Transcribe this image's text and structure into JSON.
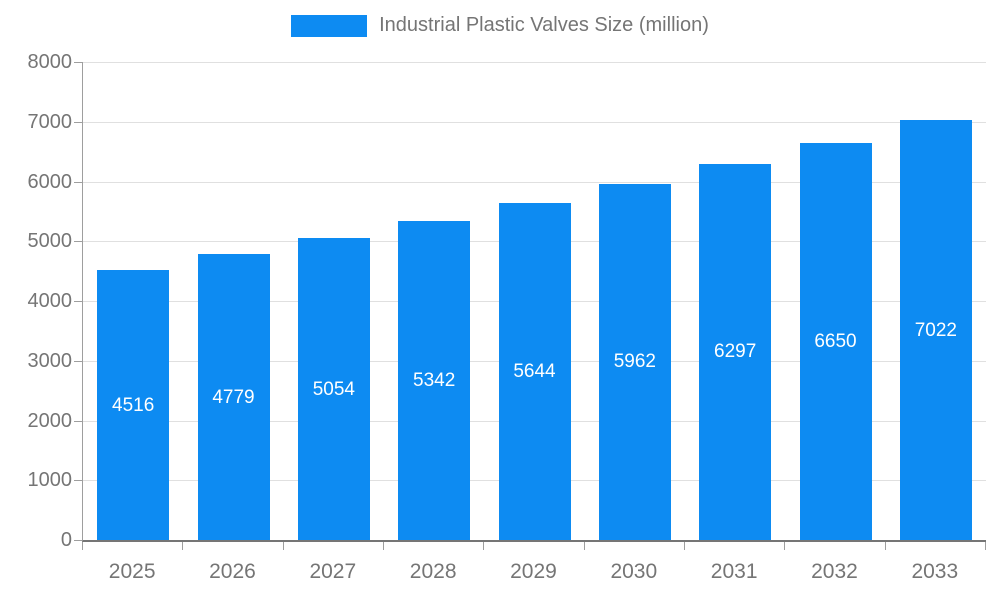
{
  "chart_data": {
    "type": "bar",
    "title": "Industrial Plastic Valves Size (million)",
    "categories": [
      "2025",
      "2026",
      "2027",
      "2028",
      "2029",
      "2030",
      "2031",
      "2032",
      "2033"
    ],
    "values": [
      4516,
      4779,
      5054,
      5342,
      5644,
      5962,
      6297,
      6650,
      7022
    ],
    "series_name": "Industrial Plastic Valves Size (million)",
    "ylim": [
      0,
      8000
    ],
    "ytick_step": 1000,
    "grid": true,
    "legend_position": "top",
    "bar_color": "#0d8bf2",
    "value_label_color": "#ffffff",
    "axis_text_color": "#757575"
  }
}
